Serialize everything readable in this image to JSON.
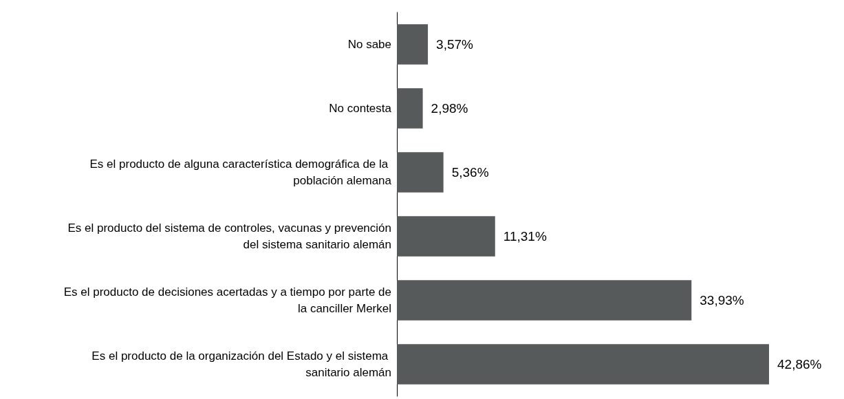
{
  "chart_data": {
    "type": "bar",
    "orientation": "horizontal",
    "categories": [
      "No sabe",
      "No contesta",
      "Es el producto de alguna característica demográfica de la población alemana",
      "Es el producto del sistema de controles, vacunas y prevención del sistema sanitario alemán",
      "Es el producto de decisiones acertadas y a tiempo por parte de la canciller Merkel",
      "Es el producto de la organización del Estado y el sistema sanitario alemán"
    ],
    "values": [
      3.57,
      2.98,
      5.36,
      11.31,
      33.93,
      42.86
    ],
    "value_labels": [
      "3,57%",
      "2,98%",
      "5,36%",
      "11,31%",
      "33,93%",
      "42,86%"
    ],
    "color": "#575a5a",
    "grid": false,
    "tick_labels": "y"
  }
}
